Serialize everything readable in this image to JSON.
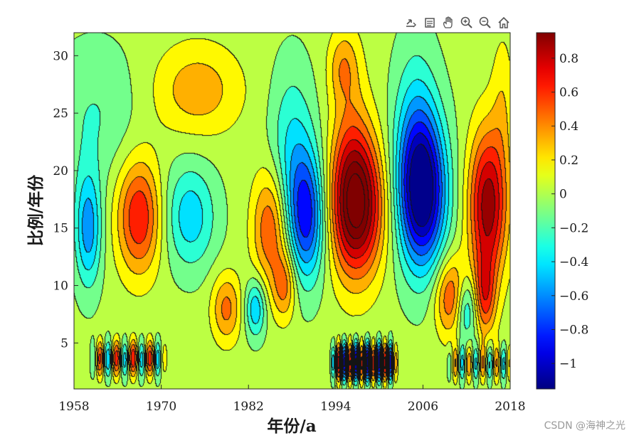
{
  "toolbar": {
    "icons": [
      "export-icon",
      "brush-icon",
      "pan-icon",
      "zoom-in-icon",
      "zoom-out-icon",
      "home-icon"
    ]
  },
  "watermark": "CSDN @海神之光",
  "chart_data": {
    "type": "heatmap",
    "subtype": "filled-contour",
    "title": "",
    "xlabel": "年份/a",
    "ylabel": "比例/年份",
    "xlim": [
      1958,
      2018
    ],
    "ylim": [
      1,
      32
    ],
    "xticks": [
      1958,
      1970,
      1982,
      1994,
      2006,
      2018
    ],
    "xtick_labels": [
      "1958",
      "1970",
      "1982",
      "1994",
      "2006",
      "2018"
    ],
    "yticks": [
      5,
      10,
      15,
      20,
      25,
      30
    ],
    "ytick_labels": [
      "5",
      "10",
      "15",
      "20",
      "25",
      "30"
    ],
    "colormap": "jet",
    "clim": [
      -1.15,
      0.95
    ],
    "colorbar_ticks": [
      0.8,
      0.6,
      0.4,
      0.2,
      0,
      -0.2,
      -0.4,
      -0.6,
      -0.8,
      -1
    ],
    "colorbar_tick_labels": [
      "0.8",
      "0.6",
      "0.4",
      "0.2",
      "0",
      "−0.2",
      "−0.4",
      "−0.6",
      "−0.8",
      "−1"
    ],
    "features": [
      {
        "x": 1997,
        "y": 17,
        "sx": 3.5,
        "sy": 6,
        "v": 1.15
      },
      {
        "x": 1996,
        "y": 22,
        "sx": 2.6,
        "sy": 9,
        "v": 0.25
      },
      {
        "x": 2006,
        "y": 18,
        "sx": 3.2,
        "sy": 6.5,
        "v": -1.2
      },
      {
        "x": 2005,
        "y": 23,
        "sx": 3,
        "sy": 8,
        "v": -0.35
      },
      {
        "x": 2015,
        "y": 17,
        "sx": 2.6,
        "sy": 6.5,
        "v": 0.95
      },
      {
        "x": 2014.5,
        "y": 9,
        "sx": 1.5,
        "sy": 3.5,
        "v": 0.55
      },
      {
        "x": 1990,
        "y": 16,
        "sx": 2.5,
        "sy": 5.5,
        "v": -0.85
      },
      {
        "x": 1988,
        "y": 22,
        "sx": 3,
        "sy": 7,
        "v": -0.35
      },
      {
        "x": 1985,
        "y": 15,
        "sx": 2.4,
        "sy": 5,
        "v": 0.55
      },
      {
        "x": 1987,
        "y": 10,
        "sx": 1.6,
        "sy": 3,
        "v": 0.45
      },
      {
        "x": 1967,
        "y": 16,
        "sx": 3,
        "sy": 5,
        "v": 0.7
      },
      {
        "x": 1974,
        "y": 16,
        "sx": 3.5,
        "sy": 4.5,
        "v": -0.45
      },
      {
        "x": 1975,
        "y": 27,
        "sx": 6,
        "sy": 4,
        "v": 0.35
      },
      {
        "x": 1960,
        "y": 15,
        "sx": 1.8,
        "sy": 5,
        "v": -0.6
      },
      {
        "x": 1961,
        "y": 25,
        "sx": 6,
        "sy": 6,
        "v": -0.2
      },
      {
        "x": 2010,
        "y": 9,
        "sx": 2.3,
        "sy": 3.5,
        "v": 0.6
      },
      {
        "x": 2012,
        "y": 8,
        "sx": 1.6,
        "sy": 3,
        "v": -0.55
      },
      {
        "x": 1998,
        "y": 3.5,
        "sx": 3,
        "sy": 1.6,
        "v": -0.3
      },
      {
        "x": 1966,
        "y": 3.8,
        "sx": 4,
        "sy": 1.5,
        "v": 0.15
      },
      {
        "x": 1979,
        "y": 8,
        "sx": 2,
        "sy": 3,
        "v": 0.45
      },
      {
        "x": 1983,
        "y": 8,
        "sx": 1.4,
        "sy": 2.5,
        "v": -0.5
      },
      {
        "x": 2017,
        "y": 26,
        "sx": 1.5,
        "sy": 6,
        "v": 0.2
      },
      {
        "x": 1995,
        "y": 29,
        "sx": 2,
        "sy": 3,
        "v": 0.3
      }
    ],
    "ripples": [
      {
        "x0": 1961,
        "x1": 1970,
        "y": 3.6,
        "period": 2.3,
        "v": 0.55
      },
      {
        "x0": 1994,
        "x1": 2002,
        "y": 3.3,
        "period": 1.6,
        "v": 0.9
      },
      {
        "x0": 2010,
        "x1": 2018,
        "y": 3.2,
        "period": 1.9,
        "v": 0.4
      }
    ]
  }
}
